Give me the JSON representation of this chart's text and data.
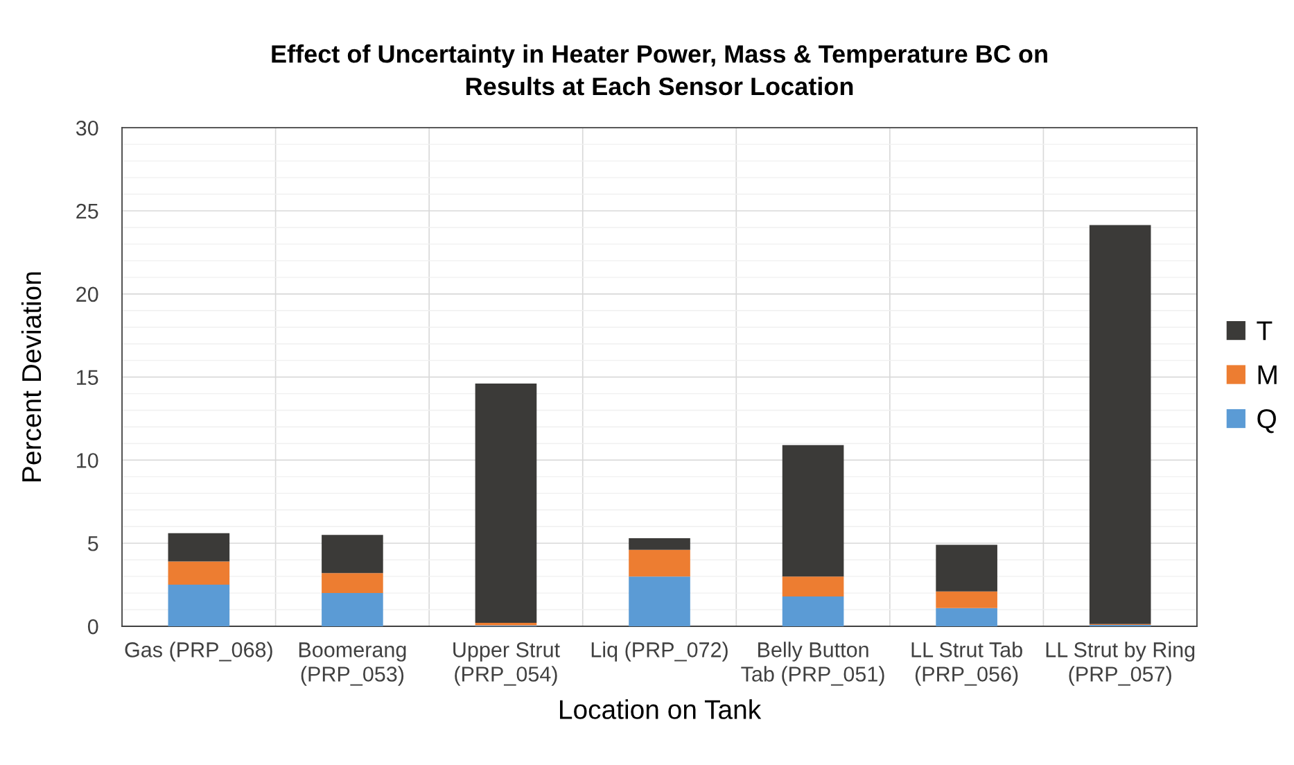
{
  "chart_data": {
    "type": "bar",
    "stacked": true,
    "title": "Effect of Uncertainty in Heater Power, Mass & Temperature BC on\nResults at Each Sensor Location",
    "xlabel": "Location on Tank",
    "ylabel": "Percent Deviation",
    "categories": [
      "Gas (PRP_068)",
      "Boomerang\n(PRP_053)",
      "Upper Strut\n(PRP_054)",
      "Liq (PRP_072)",
      "Belly Button\nTab (PRP_051)",
      "LL Strut Tab\n(PRP_056)",
      "LL Strut by Ring\n(PRP_057)"
    ],
    "series": [
      {
        "name": "Q",
        "color": "#5b9bd5",
        "values": [
          2.5,
          2.0,
          0.05,
          3.0,
          1.8,
          1.1,
          0.08
        ]
      },
      {
        "name": "M",
        "color": "#ed7d31",
        "values": [
          1.4,
          1.2,
          0.16,
          1.6,
          1.2,
          1.0,
          0.06
        ]
      },
      {
        "name": "T",
        "color": "#3b3a38",
        "values": [
          1.7,
          2.3,
          14.4,
          0.7,
          7.9,
          2.8,
          24.0
        ]
      }
    ],
    "ylim": [
      0,
      30
    ],
    "yticks": [
      0,
      5,
      10,
      15,
      20,
      25,
      30
    ],
    "grid": true,
    "legend": "right"
  }
}
